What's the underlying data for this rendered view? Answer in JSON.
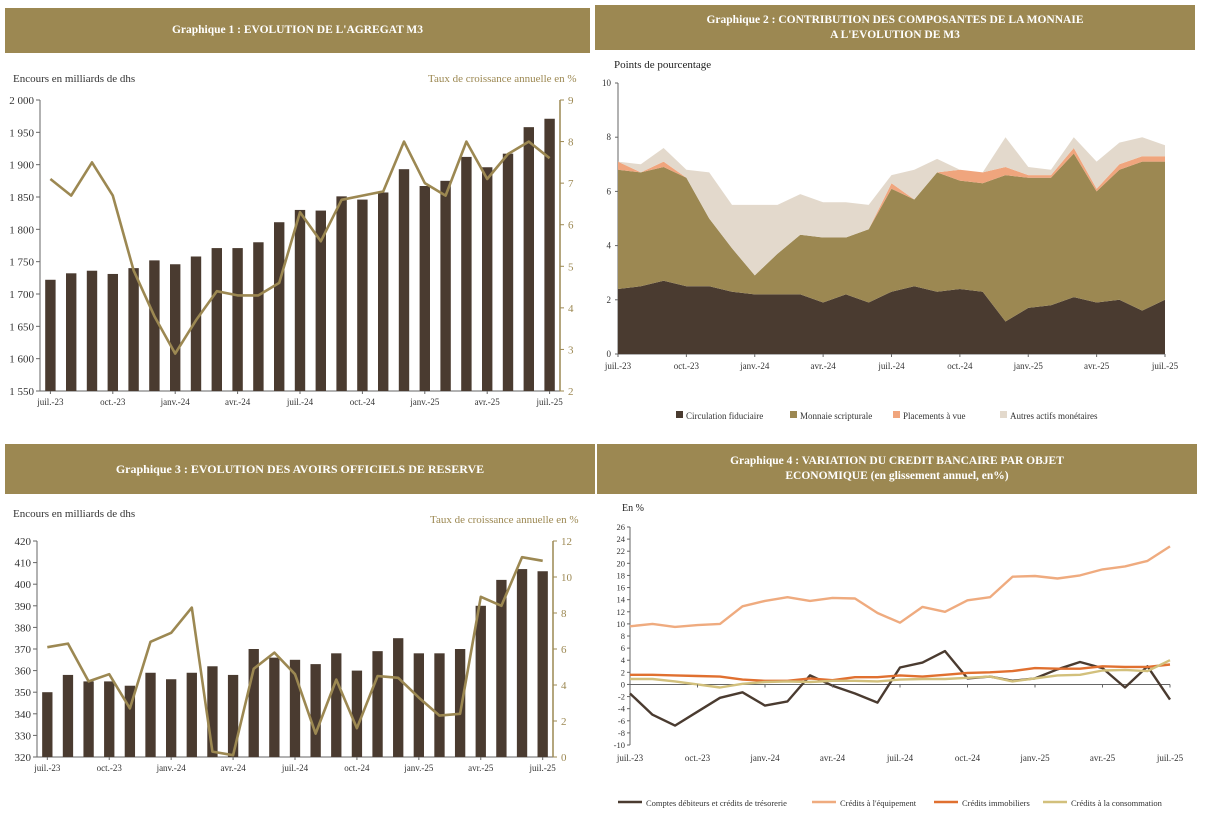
{
  "colors": {
    "header_bg": "#9c8852",
    "bar": "#4a3b30",
    "growth_line": "#9c8852",
    "circulation": "#4a3b30",
    "scripturale": "#9c8852",
    "placements": "#f0a57d",
    "autres": "#e3d9cc",
    "comptes": "#4a3b30",
    "equipement": "#efab7f",
    "immobiliers": "#e07030",
    "consommation": "#d2c07c"
  },
  "chart_data": [
    {
      "type": "bar",
      "title": "Graphique 1 : EVOLUTION DE L'AGREGAT M3",
      "ylabel": "Encours en milliards de dhs",
      "y2label": "Taux de croissance annuelle en %",
      "ylim": [
        1550,
        2000
      ],
      "yticks": [
        "1 550",
        "1 600",
        "1 650",
        "1 700",
        "1 750",
        "1 800",
        "1 850",
        "1 900",
        "1 950",
        "2 000"
      ],
      "y2lim": [
        2,
        9
      ],
      "y2ticks": [
        "2",
        "3",
        "4",
        "5",
        "6",
        "7",
        "8",
        "9"
      ],
      "xticks": [
        "juil.-23",
        "oct.-23",
        "janv.-24",
        "avr.-24",
        "juil.-24",
        "oct.-24",
        "janv.-25",
        "avr.-25",
        "juil.-25"
      ],
      "bars": [
        1722,
        1732,
        1736,
        1731,
        1740,
        1752,
        1746,
        1758,
        1771,
        1771,
        1780,
        1811,
        1830,
        1829,
        1851,
        1846,
        1857,
        1893,
        1867,
        1875,
        1912,
        1896,
        1917,
        1958,
        1971
      ],
      "line": [
        7.1,
        6.7,
        7.5,
        6.7,
        4.9,
        3.8,
        2.9,
        3.7,
        4.4,
        4.3,
        4.3,
        4.6,
        6.3,
        5.6,
        6.6,
        6.7,
        6.8,
        8.0,
        7.0,
        6.7,
        8.0,
        7.1,
        7.7,
        8.0,
        7.6
      ]
    },
    {
      "type": "area",
      "title": "Graphique 2 : CONTRIBUTION DES COMPOSANTES DE  LA MONNAIE\nA L'EVOLUTION DE M3",
      "ylabel": "Points de pourcentage",
      "ylim": [
        0,
        10
      ],
      "yticks": [
        "0",
        "2",
        "4",
        "6",
        "8",
        "10"
      ],
      "xticks": [
        "juil.-23",
        "oct.-23",
        "janv.-24",
        "avr.-24",
        "juil.-24",
        "oct.-24",
        "janv.-25",
        "avr.-25",
        "juil.-25"
      ],
      "series": [
        {
          "name": "Circulation fiduciaire",
          "values": [
            2.4,
            2.5,
            2.7,
            2.5,
            2.5,
            2.3,
            2.2,
            2.2,
            2.2,
            1.9,
            2.2,
            1.9,
            2.3,
            2.5,
            2.3,
            2.4,
            2.3,
            1.2,
            1.7,
            1.8,
            2.1,
            1.9,
            2.0,
            1.6,
            2.0
          ]
        },
        {
          "name": "Monnaie scripturale",
          "values": [
            4.4,
            4.2,
            4.2,
            4.0,
            2.5,
            1.6,
            0.7,
            1.5,
            2.2,
            2.4,
            2.1,
            2.7,
            3.8,
            3.2,
            4.4,
            4.0,
            4.0,
            5.4,
            4.8,
            4.7,
            5.3,
            4.1,
            4.8,
            5.5,
            5.1
          ]
        },
        {
          "name": "Placements à vue",
          "values": [
            0.3,
            0.0,
            0.2,
            0.0,
            0.0,
            0.0,
            0.0,
            0.0,
            0.0,
            0.0,
            0.0,
            0.0,
            0.2,
            0.0,
            0.0,
            0.4,
            0.4,
            0.3,
            0.1,
            0.1,
            0.2,
            0.1,
            0.2,
            0.2,
            0.2
          ]
        },
        {
          "name": "Autres actifs monétaires",
          "values": [
            0.0,
            0.3,
            0.5,
            0.3,
            1.7,
            1.6,
            2.6,
            1.8,
            1.5,
            1.3,
            1.3,
            0.9,
            0.3,
            1.1,
            0.5,
            0.0,
            0.0,
            1.1,
            0.3,
            0.2,
            0.4,
            1.0,
            0.8,
            0.7,
            0.4
          ]
        }
      ]
    },
    {
      "type": "bar",
      "title": "Graphique 3 : EVOLUTION DES AVOIRS OFFICIELS DE RESERVE",
      "ylabel": "Encours en milliards de dhs",
      "y2label": "Taux de croissance annuelle en %",
      "ylim": [
        320,
        420
      ],
      "yticks": [
        "320",
        "330",
        "340",
        "350",
        "360",
        "370",
        "380",
        "390",
        "400",
        "410",
        "420"
      ],
      "y2lim": [
        0,
        12
      ],
      "y2ticks": [
        "0",
        "2",
        "4",
        "6",
        "8",
        "10",
        "12"
      ],
      "xticks": [
        "juil.-23",
        "oct.-23",
        "janv.-24",
        "avr.-24",
        "juil.-24",
        "oct.-24",
        "janv.-25",
        "avr.-25",
        "juil.-25"
      ],
      "bars": [
        350,
        358,
        355,
        355,
        353,
        359,
        356,
        359,
        362,
        358,
        370,
        366,
        365,
        363,
        368,
        360,
        369,
        375,
        368,
        368,
        370,
        390,
        402,
        407,
        406
      ],
      "line": [
        6.1,
        6.3,
        4.2,
        4.6,
        2.7,
        6.4,
        6.9,
        8.3,
        0.3,
        0.1,
        4.9,
        5.8,
        4.6,
        1.3,
        4.3,
        1.6,
        4.5,
        4.4,
        3.3,
        2.3,
        2.4,
        8.9,
        8.4,
        11.1,
        10.9
      ]
    },
    {
      "type": "line",
      "title": "Graphique 4 : VARIATION DU CREDIT BANCAIRE PAR OBJET\nECONOMIQUE (en glissement annuel, en%)",
      "ylabel": "En %",
      "ylim": [
        -10,
        26
      ],
      "yticks": [
        "-10",
        "-8",
        "-6",
        "-4",
        "-2",
        "0",
        "2",
        "4",
        "6",
        "8",
        "10",
        "12",
        "14",
        "16",
        "18",
        "20",
        "22",
        "24",
        "26"
      ],
      "xticks": [
        "juil.-23",
        "oct.-23",
        "janv.-24",
        "avr.-24",
        "juil.-24",
        "oct.-24",
        "janv.-25",
        "avr.-25",
        "juil.-25"
      ],
      "series": [
        {
          "name": "Comptes débiteurs et crédits de trésorerie",
          "values": [
            -1.5,
            -5.0,
            -6.8,
            -4.5,
            -2.2,
            -1.3,
            -3.5,
            -2.8,
            1.5,
            -0.2,
            -1.5,
            -3.0,
            2.8,
            3.6,
            5.5,
            1.0,
            1.3,
            0.6,
            1.0,
            2.5,
            3.7,
            2.7,
            -0.5,
            3.0,
            -2.5
          ]
        },
        {
          "name": "Crédits à l'équipement",
          "values": [
            9.6,
            10.0,
            9.5,
            9.8,
            10.0,
            12.9,
            13.8,
            14.4,
            13.8,
            14.3,
            14.2,
            11.8,
            10.2,
            12.8,
            12.0,
            13.9,
            14.4,
            17.8,
            17.9,
            17.5,
            18.0,
            19.0,
            19.5,
            20.4,
            22.8
          ]
        },
        {
          "name": "Crédits immobiliers",
          "values": [
            1.6,
            1.6,
            1.5,
            1.4,
            1.3,
            0.8,
            0.6,
            0.6,
            1.0,
            0.7,
            1.2,
            1.2,
            1.5,
            1.3,
            1.6,
            1.9,
            2.0,
            2.2,
            2.7,
            2.6,
            2.6,
            3.0,
            2.9,
            2.9,
            3.3
          ]
        },
        {
          "name": "Crédits à la consommation",
          "values": [
            0.9,
            0.9,
            0.5,
            0.0,
            -0.5,
            0.1,
            0.4,
            0.5,
            0.4,
            0.6,
            0.6,
            0.5,
            0.8,
            0.9,
            0.9,
            1.1,
            1.3,
            0.5,
            1.0,
            1.5,
            1.6,
            2.3,
            2.4,
            2.2,
            4.0
          ]
        }
      ]
    }
  ]
}
